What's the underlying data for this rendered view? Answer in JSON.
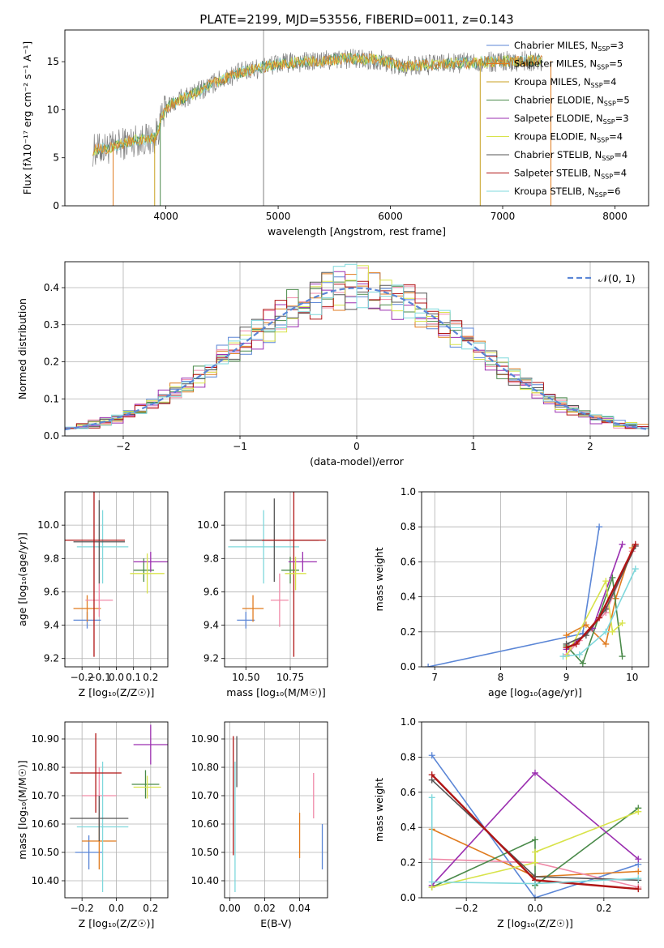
{
  "figure_title": "PLATE=2199, MJD=53556, FIBERID=0011, z=0.143",
  "colors": {
    "Chabrier MILES": "#5b86d6",
    "Salpeter MILES": "#e07b1f",
    "Kroupa MILES": "#c8a020",
    "Chabrier ELODIE": "#4a8a4a",
    "Salpeter ELODIE": "#9b2fb0",
    "Kroupa ELODIE": "#d8e34a",
    "Chabrier STELIB": "#555555",
    "Salpeter STELIB": "#b01515",
    "Kroupa STELIB": "#7fd8dc",
    "pink": "#f08aa8",
    "gauss": "#5b86d6"
  },
  "chart_data": [
    {
      "id": "spectrum",
      "type": "line",
      "title": "PLATE=2199, MJD=53556, FIBERID=0011, z=0.143",
      "xlabel": "wavelength [Angstrom, rest frame]",
      "ylabel": "Flux [fλ10⁻¹⁷ erg cm⁻² s⁻¹ A⁻¹]",
      "xlim": [
        3100,
        8300
      ],
      "ylim": [
        0,
        18.3
      ],
      "xticks": [
        4000,
        5000,
        6000,
        7000,
        8000
      ],
      "yticks": [
        0,
        5,
        10,
        15
      ],
      "legend_position": "upper right",
      "legend": [
        {
          "label": "Chabrier MILES, N",
          "sub": "SSP",
          "suffix": "=3",
          "color": "#5b86d6"
        },
        {
          "label": "Salpeter MILES, N",
          "sub": "SSP",
          "suffix": "=5",
          "color": "#e07b1f"
        },
        {
          "label": "Kroupa MILES, N",
          "sub": "SSP",
          "suffix": "=4",
          "color": "#c8a020"
        },
        {
          "label": "Chabrier ELODIE, N",
          "sub": "SSP",
          "suffix": "=5",
          "color": "#4a8a4a"
        },
        {
          "label": "Salpeter ELODIE, N",
          "sub": "SSP",
          "suffix": "=3",
          "color": "#9b2fb0"
        },
        {
          "label": "Kroupa ELODIE, N",
          "sub": "SSP",
          "suffix": "=4",
          "color": "#d8e34a"
        },
        {
          "label": "Chabrier STELIB, N",
          "sub": "SSP",
          "suffix": "=4",
          "color": "#555555"
        },
        {
          "label": "Salpeter STELIB, N",
          "sub": "SSP",
          "suffix": "=4",
          "color": "#b01515"
        },
        {
          "label": "Kroupa STELIB, N",
          "sub": "SSP",
          "suffix": "=6",
          "color": "#7fd8dc"
        }
      ],
      "data_trend": [
        [
          3350,
          5.8
        ],
        [
          3500,
          6.0
        ],
        [
          3700,
          6.8
        ],
        [
          3900,
          7.0
        ],
        [
          4000,
          10.2
        ],
        [
          4150,
          11.2
        ],
        [
          4300,
          12.0
        ],
        [
          4500,
          13.2
        ],
        [
          4700,
          14.0
        ],
        [
          5000,
          14.8
        ],
        [
          5300,
          15.0
        ],
        [
          5600,
          15.3
        ],
        [
          5900,
          15.2
        ],
        [
          6100,
          14.5
        ],
        [
          6500,
          14.8
        ],
        [
          6900,
          15.0
        ],
        [
          7300,
          15.1
        ]
      ],
      "data_range": [
        3350,
        7350
      ]
    },
    {
      "id": "residuals",
      "type": "step",
      "xlabel": "(data-model)/error",
      "ylabel": "Normed distribution",
      "xlim": [
        -2.5,
        2.5
      ],
      "ylim": [
        0,
        0.47
      ],
      "xticks": [
        -2,
        -1,
        0,
        1,
        2
      ],
      "yticks": [
        0.0,
        0.1,
        0.2,
        0.3,
        0.4
      ],
      "legend_position": "upper right",
      "legend_label": "𝒩(0, 1)",
      "bin_width": 0.1,
      "gaussian": {
        "mu": 0,
        "sigma": 1
      }
    },
    {
      "id": "age-vs-Z",
      "type": "errorbar",
      "xlabel": "Z [log₁₀(Z/Z☉)]",
      "ylabel": "age  [log₁₀(age/yr)]",
      "xlim": [
        -0.3,
        0.3
      ],
      "ylim": [
        9.15,
        10.2
      ],
      "xticks": [
        -0.2,
        -0.1,
        0.0,
        0.1,
        0.2
      ],
      "yticks": [
        9.2,
        9.4,
        9.6,
        9.8,
        10.0
      ],
      "points": [
        {
          "x": -0.17,
          "y": 9.43,
          "xerr": 0.08,
          "yerr": 0.05,
          "color": "#5b86d6"
        },
        {
          "x": -0.17,
          "y": 9.5,
          "xerr": 0.08,
          "yerr": 0.08,
          "color": "#e07b1f"
        },
        {
          "x": -0.1,
          "y": 9.55,
          "xerr": 0.08,
          "yerr": 0.1,
          "color": "#f08aa8"
        },
        {
          "x": -0.08,
          "y": 9.87,
          "xerr": 0.15,
          "yerr": 0.22,
          "color": "#7fd8dc"
        },
        {
          "x": -0.1,
          "y": 9.9,
          "xerr": 0.15,
          "yerr": 0.25,
          "color": "#555555"
        },
        {
          "x": -0.13,
          "y": 9.91,
          "xerr": 0.18,
          "yerr": 0.7,
          "color": "#b01515"
        },
        {
          "x": 0.16,
          "y": 9.73,
          "xerr": 0.06,
          "yerr": 0.07,
          "color": "#4a8a4a"
        },
        {
          "x": 0.2,
          "y": 9.78,
          "xerr": 0.1,
          "yerr": 0.06,
          "color": "#9b2fb0"
        },
        {
          "x": 0.18,
          "y": 9.71,
          "xerr": 0.1,
          "yerr": 0.12,
          "color": "#d8e34a"
        }
      ]
    },
    {
      "id": "age-vs-mass",
      "type": "errorbar",
      "xlabel": "mass [log₁₀(M/M☉)]",
      "ylabel": "",
      "xlim": [
        10.38,
        10.96
      ],
      "ylim": [
        9.15,
        10.2
      ],
      "xticks": [
        10.5,
        10.75
      ],
      "xtick_labels": [
        "10.50",
        "10.75"
      ],
      "yticks": [
        9.2,
        9.4,
        9.6,
        9.8,
        10.0
      ],
      "points": [
        {
          "x": 10.5,
          "y": 9.43,
          "xerr": 0.05,
          "yerr": 0.05,
          "color": "#5b86d6"
        },
        {
          "x": 10.54,
          "y": 9.5,
          "xerr": 0.06,
          "yerr": 0.08,
          "color": "#e07b1f"
        },
        {
          "x": 10.69,
          "y": 9.55,
          "xerr": 0.05,
          "yerr": 0.16,
          "color": "#f08aa8"
        },
        {
          "x": 10.6,
          "y": 9.87,
          "xerr": 0.2,
          "yerr": 0.22,
          "color": "#7fd8dc"
        },
        {
          "x": 10.66,
          "y": 9.91,
          "xerr": 0.25,
          "yerr": 0.25,
          "color": "#555555"
        },
        {
          "x": 10.77,
          "y": 9.91,
          "xerr": 0.18,
          "yerr": 0.7,
          "color": "#b01515"
        },
        {
          "x": 10.75,
          "y": 9.73,
          "xerr": 0.05,
          "yerr": 0.08,
          "color": "#4a8a4a"
        },
        {
          "x": 10.82,
          "y": 9.78,
          "xerr": 0.08,
          "yerr": 0.06,
          "color": "#9b2fb0"
        },
        {
          "x": 10.78,
          "y": 9.71,
          "xerr": 0.06,
          "yerr": 0.1,
          "color": "#d8e34a"
        }
      ]
    },
    {
      "id": "weight-vs-age",
      "type": "line",
      "xlabel": "age  [log₁₀(age/yr)]",
      "ylabel": "mass weight",
      "xlim": [
        6.8,
        10.25
      ],
      "ylim": [
        0.0,
        1.0
      ],
      "xticks": [
        7,
        8,
        9,
        10
      ],
      "yticks": [
        0.0,
        0.2,
        0.4,
        0.6,
        0.8,
        1.0
      ],
      "series": [
        {
          "color": "#5b86d6",
          "points": [
            [
              6.9,
              0.0
            ],
            [
              9.25,
              0.19
            ],
            [
              9.5,
              0.8
            ]
          ]
        },
        {
          "color": "#e07b1f",
          "points": [
            [
              9.0,
              0.18
            ],
            [
              9.3,
              0.24
            ],
            [
              9.6,
              0.13
            ],
            [
              9.75,
              0.39
            ],
            [
              10.0,
              0.68
            ]
          ]
        },
        {
          "color": "#f08aa8",
          "points": [
            [
              9.0,
              0.07
            ],
            [
              9.2,
              0.15
            ],
            [
              9.6,
              0.31
            ],
            [
              10.0,
              0.66
            ]
          ]
        },
        {
          "color": "#4a8a4a",
          "points": [
            [
              9.0,
              0.12
            ],
            [
              9.25,
              0.02
            ],
            [
              9.7,
              0.51
            ],
            [
              9.85,
              0.06
            ]
          ]
        },
        {
          "color": "#9b2fb0",
          "points": [
            [
              9.0,
              0.1
            ],
            [
              9.4,
              0.22
            ],
            [
              9.85,
              0.7
            ]
          ]
        },
        {
          "color": "#d8e34a",
          "points": [
            [
              9.0,
              0.06
            ],
            [
              9.6,
              0.49
            ],
            [
              9.7,
              0.2
            ],
            [
              9.85,
              0.25
            ]
          ]
        },
        {
          "color": "#555555",
          "points": [
            [
              9.0,
              0.13
            ],
            [
              9.3,
              0.18
            ],
            [
              9.6,
              0.33
            ],
            [
              10.05,
              0.69
            ]
          ]
        },
        {
          "color": "#b01515",
          "points": [
            [
              9.0,
              0.11
            ],
            [
              9.15,
              0.13
            ],
            [
              9.5,
              0.28
            ],
            [
              10.05,
              0.7
            ]
          ]
        },
        {
          "color": "#7fd8dc",
          "points": [
            [
              8.95,
              0.06
            ],
            [
              9.2,
              0.07
            ],
            [
              9.6,
              0.2
            ],
            [
              10.05,
              0.56
            ]
          ]
        }
      ]
    },
    {
      "id": "mass-vs-Z",
      "type": "errorbar",
      "xlabel": "Z [log₁₀(Z/Z☉)]",
      "ylabel": "mass [log₁₀(M/M☉)]",
      "xlim": [
        -0.3,
        0.3
      ],
      "ylim": [
        10.34,
        10.96
      ],
      "xticks": [
        -0.2,
        0.0,
        0.2
      ],
      "yticks": [
        10.4,
        10.5,
        10.6,
        10.7,
        10.8,
        10.9
      ],
      "points": [
        {
          "x": -0.16,
          "y": 10.5,
          "xerr": 0.08,
          "yerr": 0.06,
          "color": "#5b86d6"
        },
        {
          "x": -0.1,
          "y": 10.54,
          "xerr": 0.1,
          "yerr": 0.1,
          "color": "#e07b1f"
        },
        {
          "x": -0.1,
          "y": 10.7,
          "xerr": 0.1,
          "yerr": 0.1,
          "color": "#f08aa8"
        },
        {
          "x": -0.08,
          "y": 10.59,
          "xerr": 0.15,
          "yerr": 0.23,
          "color": "#7fd8dc"
        },
        {
          "x": -0.1,
          "y": 10.62,
          "xerr": 0.17,
          "yerr": 0.08,
          "color": "#555555"
        },
        {
          "x": -0.12,
          "y": 10.78,
          "xerr": 0.15,
          "yerr": 0.14,
          "color": "#b01515"
        },
        {
          "x": 0.17,
          "y": 10.74,
          "xerr": 0.08,
          "yerr": 0.05,
          "color": "#4a8a4a"
        },
        {
          "x": 0.2,
          "y": 10.88,
          "xerr": 0.1,
          "yerr": 0.07,
          "color": "#9b2fb0"
        },
        {
          "x": 0.18,
          "y": 10.73,
          "xerr": 0.08,
          "yerr": 0.04,
          "color": "#d8e34a"
        }
      ]
    },
    {
      "id": "mass-vs-ebv",
      "type": "errorbar",
      "xlabel": "E(B-V)",
      "ylabel": "",
      "xlim": [
        -0.003,
        0.056
      ],
      "ylim": [
        10.34,
        10.96
      ],
      "xticks": [
        0.0,
        0.02,
        0.04
      ],
      "xtick_labels": [
        "0.00",
        "0.02",
        "0.04"
      ],
      "yticks": [
        10.4,
        10.5,
        10.6,
        10.7,
        10.8,
        10.9
      ],
      "points": [
        {
          "x": 0.053,
          "y": 10.52,
          "xerr": 0,
          "yerr": 0.08,
          "color": "#5b86d6"
        },
        {
          "x": 0.04,
          "y": 10.56,
          "xerr": 0,
          "yerr": 0.08,
          "color": "#e07b1f"
        },
        {
          "x": 0.048,
          "y": 10.7,
          "xerr": 0,
          "yerr": 0.08,
          "color": "#f08aa8"
        },
        {
          "x": 0.003,
          "y": 10.59,
          "xerr": 0,
          "yerr": 0.23,
          "color": "#7fd8dc"
        },
        {
          "x": 0.004,
          "y": 10.82,
          "xerr": 0,
          "yerr": 0.09,
          "color": "#555555"
        },
        {
          "x": 0.002,
          "y": 10.7,
          "xerr": 0,
          "yerr": 0.21,
          "color": "#b01515"
        }
      ]
    },
    {
      "id": "weight-vs-Z",
      "type": "line",
      "xlabel": "Z [log₁₀(Z/Z☉)]",
      "ylabel": "mass weight",
      "xlim": [
        -0.33,
        0.33
      ],
      "ylim": [
        0.0,
        1.0
      ],
      "xticks": [
        -0.2,
        0.0,
        0.2
      ],
      "yticks": [
        0.0,
        0.2,
        0.4,
        0.6,
        0.8,
        1.0
      ],
      "series": [
        {
          "color": "#5b86d6",
          "points": [
            [
              -0.3,
              0.81
            ],
            [
              0.0,
              0.0
            ],
            [
              0.3,
              0.19
            ]
          ]
        },
        {
          "color": "#e07b1f",
          "points": [
            [
              -0.3,
              0.39
            ],
            [
              0.0,
              0.12
            ],
            [
              0.3,
              0.15
            ]
          ]
        },
        {
          "color": "#f08aa8",
          "points": [
            [
              -0.3,
              0.22
            ],
            [
              0.0,
              0.2
            ],
            [
              0.3,
              0.06
            ]
          ]
        },
        {
          "color": "#4a8a4a",
          "points": [
            [
              -0.3,
              0.06
            ],
            [
              0.0,
              0.33
            ],
            [
              0.0,
              0.07
            ],
            [
              0.3,
              0.51
            ]
          ]
        },
        {
          "color": "#9b2fb0",
          "points": [
            [
              -0.3,
              0.07
            ],
            [
              0.0,
              0.71
            ],
            [
              0.3,
              0.22
            ]
          ]
        },
        {
          "color": "#d8e34a",
          "points": [
            [
              -0.3,
              0.06
            ],
            [
              0.0,
              0.2
            ],
            [
              0.0,
              0.26
            ],
            [
              0.3,
              0.49
            ]
          ]
        },
        {
          "color": "#555555",
          "points": [
            [
              -0.3,
              0.67
            ],
            [
              0.0,
              0.12
            ],
            [
              0.3,
              0.1
            ]
          ]
        },
        {
          "color": "#b01515",
          "points": [
            [
              -0.3,
              0.7
            ],
            [
              0.0,
              0.1
            ],
            [
              0.3,
              0.05
            ]
          ]
        },
        {
          "color": "#7fd8dc",
          "points": [
            [
              -0.3,
              0.57
            ],
            [
              -0.3,
              0.09
            ],
            [
              0.0,
              0.08
            ],
            [
              0.3,
              0.11
            ]
          ]
        }
      ]
    }
  ]
}
